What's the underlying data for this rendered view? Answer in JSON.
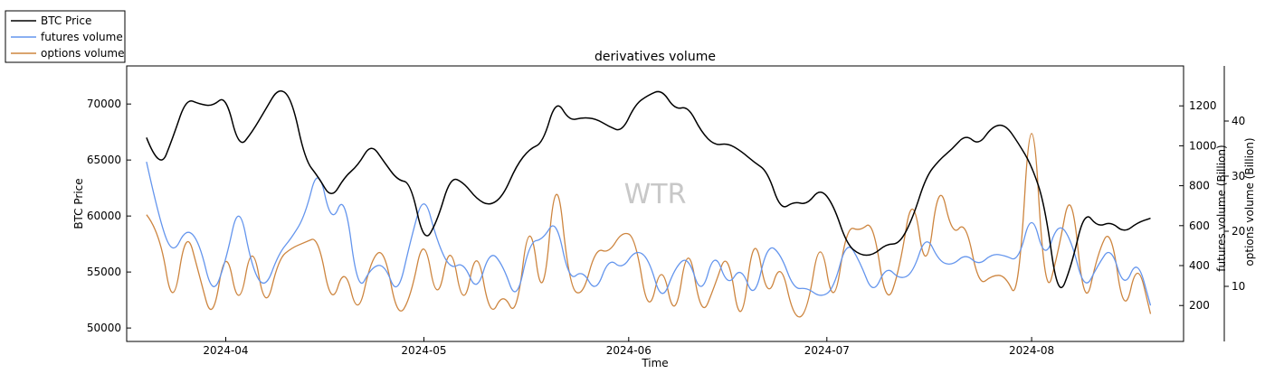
{
  "chart_data": {
    "type": "line",
    "title": "derivatives volume",
    "xlabel": "Time",
    "ylabel_left": "BTC Price",
    "ylabel_right1": "futures volume (Billion)",
    "ylabel_right2": "options volume (Billion)",
    "watermark": "WTR",
    "x_range": [
      "2024-03-17",
      "2024-08-24"
    ],
    "x_ticks": [
      "2024-04",
      "2024-05",
      "2024-06",
      "2024-07",
      "2024-08"
    ],
    "x_tick_dates": [
      "2024-04-01",
      "2024-05-01",
      "2024-06-01",
      "2024-07-01",
      "2024-08-01"
    ],
    "y_left": {
      "min": 48800,
      "max": 73400,
      "ticks": [
        "50000",
        "55000",
        "60000",
        "65000",
        "70000"
      ]
    },
    "y_right1": {
      "min": 20,
      "max": 1400,
      "ticks": [
        "200",
        "400",
        "600",
        "800",
        "1000",
        "1200"
      ]
    },
    "y_right2": {
      "min": 0,
      "max": 50,
      "ticks": [
        "10",
        "20",
        "30",
        "40"
      ]
    },
    "legend": {
      "placement": "top-left",
      "entries": [
        "BTC Price",
        "futures volume",
        "options volume"
      ]
    },
    "grid": false,
    "series": [
      {
        "name": "BTC Price",
        "color": "#000000",
        "axis": "left",
        "x": [
          "2024-03-20",
          "2024-03-22",
          "2024-03-24",
          "2024-03-26",
          "2024-03-28",
          "2024-03-30",
          "2024-04-01",
          "2024-04-03",
          "2024-04-05",
          "2024-04-07",
          "2024-04-09",
          "2024-04-11",
          "2024-04-13",
          "2024-04-15",
          "2024-04-17",
          "2024-04-19",
          "2024-04-21",
          "2024-04-23",
          "2024-04-25",
          "2024-04-27",
          "2024-04-29",
          "2024-05-01",
          "2024-05-03",
          "2024-05-05",
          "2024-05-07",
          "2024-05-09",
          "2024-05-11",
          "2024-05-13",
          "2024-05-15",
          "2024-05-17",
          "2024-05-19",
          "2024-05-21",
          "2024-05-23",
          "2024-05-25",
          "2024-05-27",
          "2024-05-29",
          "2024-05-31",
          "2024-06-02",
          "2024-06-04",
          "2024-06-06",
          "2024-06-08",
          "2024-06-10",
          "2024-06-12",
          "2024-06-14",
          "2024-06-16",
          "2024-06-18",
          "2024-06-20",
          "2024-06-22",
          "2024-06-24",
          "2024-06-26",
          "2024-06-28",
          "2024-06-30",
          "2024-07-02",
          "2024-07-04",
          "2024-07-06",
          "2024-07-08",
          "2024-07-10",
          "2024-07-12",
          "2024-07-14",
          "2024-07-16",
          "2024-07-18",
          "2024-07-20",
          "2024-07-22",
          "2024-07-24",
          "2024-07-26",
          "2024-07-28",
          "2024-07-30",
          "2024-08-01",
          "2024-08-03",
          "2024-08-05",
          "2024-08-07",
          "2024-08-09",
          "2024-08-11",
          "2024-08-13",
          "2024-08-15",
          "2024-08-17",
          "2024-08-19"
        ],
        "values": [
          67000,
          64000,
          67000,
          70500,
          70000,
          69800,
          70800,
          66000,
          67500,
          69500,
          71500,
          70500,
          65000,
          63500,
          61500,
          63500,
          64500,
          66500,
          64800,
          63200,
          63000,
          57500,
          59500,
          63500,
          63000,
          61500,
          60900,
          61800,
          64500,
          66000,
          66500,
          70500,
          68500,
          68800,
          68700,
          68000,
          67500,
          70000,
          70800,
          71300,
          69500,
          69800,
          67500,
          66300,
          66500,
          65800,
          64800,
          64000,
          60500,
          61300,
          61000,
          62500,
          61000,
          57500,
          56500,
          56500,
          57500,
          57500,
          59800,
          63500,
          65000,
          66000,
          67300,
          66300,
          68000,
          68200,
          66500,
          64500,
          61000,
          52500,
          55500,
          60500,
          59000,
          59500,
          58500,
          59400,
          59800
        ]
      },
      {
        "name": "futures volume",
        "color": "#6495ed",
        "axis": "right1",
        "x": [
          "2024-03-20",
          "2024-03-22",
          "2024-03-24",
          "2024-03-26",
          "2024-03-28",
          "2024-03-30",
          "2024-04-01",
          "2024-04-03",
          "2024-04-05",
          "2024-04-07",
          "2024-04-09",
          "2024-04-11",
          "2024-04-13",
          "2024-04-15",
          "2024-04-17",
          "2024-04-19",
          "2024-04-21",
          "2024-04-23",
          "2024-04-25",
          "2024-04-27",
          "2024-04-29",
          "2024-05-01",
          "2024-05-03",
          "2024-05-05",
          "2024-05-07",
          "2024-05-09",
          "2024-05-11",
          "2024-05-13",
          "2024-05-15",
          "2024-05-17",
          "2024-05-19",
          "2024-05-21",
          "2024-05-23",
          "2024-05-25",
          "2024-05-27",
          "2024-05-29",
          "2024-05-31",
          "2024-06-02",
          "2024-06-04",
          "2024-06-06",
          "2024-06-08",
          "2024-06-10",
          "2024-06-12",
          "2024-06-14",
          "2024-06-16",
          "2024-06-18",
          "2024-06-20",
          "2024-06-22",
          "2024-06-24",
          "2024-06-26",
          "2024-06-28",
          "2024-06-30",
          "2024-07-02",
          "2024-07-04",
          "2024-07-06",
          "2024-07-08",
          "2024-07-10",
          "2024-07-12",
          "2024-07-14",
          "2024-07-16",
          "2024-07-18",
          "2024-07-20",
          "2024-07-22",
          "2024-07-24",
          "2024-07-26",
          "2024-07-28",
          "2024-07-30",
          "2024-08-01",
          "2024-08-03",
          "2024-08-05",
          "2024-08-07",
          "2024-08-09",
          "2024-08-11",
          "2024-08-13",
          "2024-08-15",
          "2024-08-17",
          "2024-08-19"
        ],
        "values": [
          920,
          620,
          450,
          590,
          520,
          240,
          420,
          730,
          380,
          280,
          460,
          540,
          650,
          910,
          600,
          770,
          260,
          390,
          410,
          240,
          530,
          770,
          520,
          380,
          420,
          260,
          480,
          400,
          210,
          520,
          530,
          640,
          320,
          380,
          260,
          440,
          380,
          480,
          440,
          210,
          390,
          450,
          240,
          480,
          290,
          400,
          220,
          510,
          460,
          280,
          290,
          240,
          280,
          530,
          420,
          250,
          400,
          330,
          360,
          560,
          420,
          400,
          460,
          400,
          460,
          450,
          420,
          680,
          420,
          620,
          530,
          270,
          400,
          500,
          280,
          440,
          200
        ]
      },
      {
        "name": "options volume",
        "color": "#cd853f",
        "axis": "right2",
        "x": [
          "2024-03-20",
          "2024-03-22",
          "2024-03-24",
          "2024-03-26",
          "2024-03-28",
          "2024-03-30",
          "2024-04-01",
          "2024-04-03",
          "2024-04-05",
          "2024-04-07",
          "2024-04-09",
          "2024-04-11",
          "2024-04-13",
          "2024-04-15",
          "2024-04-17",
          "2024-04-19",
          "2024-04-21",
          "2024-04-23",
          "2024-04-25",
          "2024-04-27",
          "2024-04-29",
          "2024-05-01",
          "2024-05-03",
          "2024-05-05",
          "2024-05-07",
          "2024-05-09",
          "2024-05-11",
          "2024-05-13",
          "2024-05-15",
          "2024-05-17",
          "2024-05-19",
          "2024-05-21",
          "2024-05-23",
          "2024-05-25",
          "2024-05-27",
          "2024-05-29",
          "2024-05-31",
          "2024-06-02",
          "2024-06-04",
          "2024-06-06",
          "2024-06-08",
          "2024-06-10",
          "2024-06-12",
          "2024-06-14",
          "2024-06-16",
          "2024-06-18",
          "2024-06-20",
          "2024-06-22",
          "2024-06-24",
          "2024-06-26",
          "2024-06-28",
          "2024-06-30",
          "2024-07-02",
          "2024-07-04",
          "2024-07-06",
          "2024-07-08",
          "2024-07-10",
          "2024-07-12",
          "2024-07-14",
          "2024-07-16",
          "2024-07-18",
          "2024-07-20",
          "2024-07-22",
          "2024-07-24",
          "2024-07-26",
          "2024-07-28",
          "2024-07-30",
          "2024-08-01",
          "2024-08-03",
          "2024-08-05",
          "2024-08-07",
          "2024-08-09",
          "2024-08-11",
          "2024-08-13",
          "2024-08-15",
          "2024-08-17",
          "2024-08-19"
        ],
        "values": [
          23,
          20,
          5,
          21,
          12,
          3,
          18,
          5,
          19,
          5,
          15,
          17,
          18,
          19,
          6,
          14,
          4,
          15,
          17,
          4,
          8,
          20,
          6,
          19,
          5,
          18,
          4,
          9,
          4,
          24,
          5,
          33,
          10,
          8,
          17,
          16,
          20,
          19,
          4,
          15,
          3,
          19,
          4,
          10,
          17,
          1,
          21,
          7,
          15,
          4,
          5,
          20,
          5,
          21,
          20,
          22,
          6,
          13,
          28,
          11,
          30,
          19,
          22,
          10,
          12,
          12,
          7,
          48,
          7,
          16,
          29,
          5,
          16,
          21,
          4,
          15,
          5
        ]
      }
    ]
  }
}
